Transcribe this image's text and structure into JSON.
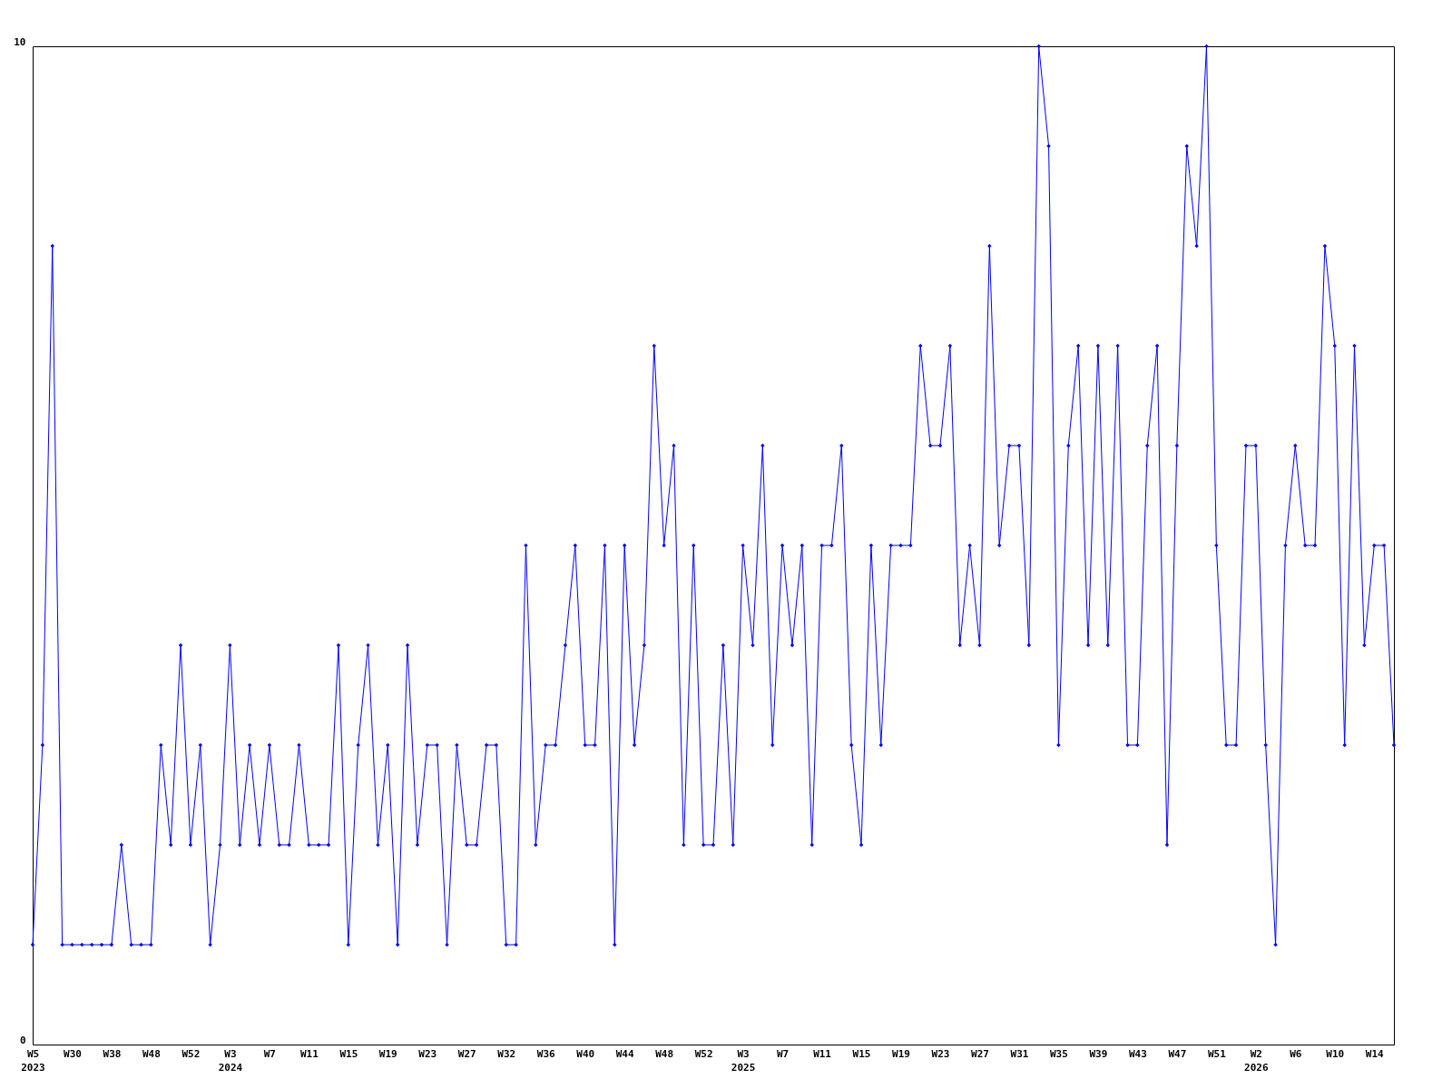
{
  "chart_data": {
    "type": "line",
    "categories": [
      "W5\n2023",
      null,
      null,
      null,
      "W30",
      null,
      null,
      null,
      "W38",
      null,
      null,
      null,
      "W48",
      null,
      null,
      null,
      "W52",
      null,
      null,
      null,
      "W3\n2024",
      null,
      null,
      null,
      "W7",
      null,
      null,
      null,
      "W11",
      null,
      null,
      null,
      "W15",
      null,
      null,
      null,
      "W19",
      null,
      null,
      null,
      "W23",
      null,
      null,
      null,
      "W27",
      null,
      null,
      null,
      "W32",
      null,
      null,
      null,
      "W36",
      null,
      null,
      null,
      "W40",
      null,
      null,
      null,
      "W44",
      null,
      null,
      null,
      "W48",
      null,
      null,
      null,
      "W52",
      null,
      null,
      null,
      "W3\n2025",
      null,
      null,
      null,
      "W7",
      null,
      null,
      null,
      "W11",
      null,
      null,
      null,
      "W15",
      null,
      null,
      null,
      "W19",
      null,
      null,
      null,
      "W23",
      null,
      null,
      null,
      "W27",
      null,
      null,
      null,
      "W31",
      null,
      null,
      null,
      "W35",
      null,
      null,
      null,
      "W39",
      null,
      null,
      null,
      "W43",
      null,
      null,
      null,
      "W47",
      null,
      null,
      null,
      "W51",
      null,
      null,
      null,
      "W2\n2026",
      null,
      null,
      null,
      "W6",
      null,
      null,
      null,
      "W10",
      null,
      null,
      null,
      "W14",
      null,
      null
    ],
    "series": [
      {
        "color": "#0000ff",
        "values": [
          1,
          3,
          8,
          1,
          1,
          1,
          1,
          1,
          1,
          2,
          1,
          1,
          1,
          3,
          2,
          4,
          2,
          3,
          1,
          2,
          4,
          2,
          3,
          2,
          3,
          2,
          2,
          3,
          2,
          2,
          2,
          4,
          1,
          3,
          4,
          2,
          3,
          1,
          4,
          2,
          3,
          3,
          1,
          3,
          2,
          2,
          3,
          3,
          1,
          1,
          5,
          2,
          3,
          3,
          4,
          5,
          3,
          3,
          5,
          1,
          5,
          3,
          4,
          7,
          5,
          6,
          2,
          5,
          2,
          2,
          4,
          2,
          5,
          4,
          6,
          3,
          5,
          4,
          5,
          2,
          5,
          5,
          6,
          3,
          2,
          5,
          3,
          5,
          5,
          5,
          7,
          6,
          6,
          7,
          4,
          5,
          4,
          8,
          5,
          6,
          6,
          4,
          10,
          9,
          3,
          6,
          7,
          4,
          7,
          4,
          7,
          3,
          3,
          6,
          7,
          2,
          6,
          9,
          8,
          10,
          5,
          3,
          3,
          6,
          6,
          3,
          1,
          5,
          6,
          5,
          5,
          8,
          7,
          3,
          7,
          4,
          5,
          5,
          3
        ]
      }
    ],
    "ylim": [
      0,
      10
    ],
    "yticks": [
      0,
      10
    ],
    "grid": false,
    "marker": "diamond",
    "line_style": "solid"
  }
}
